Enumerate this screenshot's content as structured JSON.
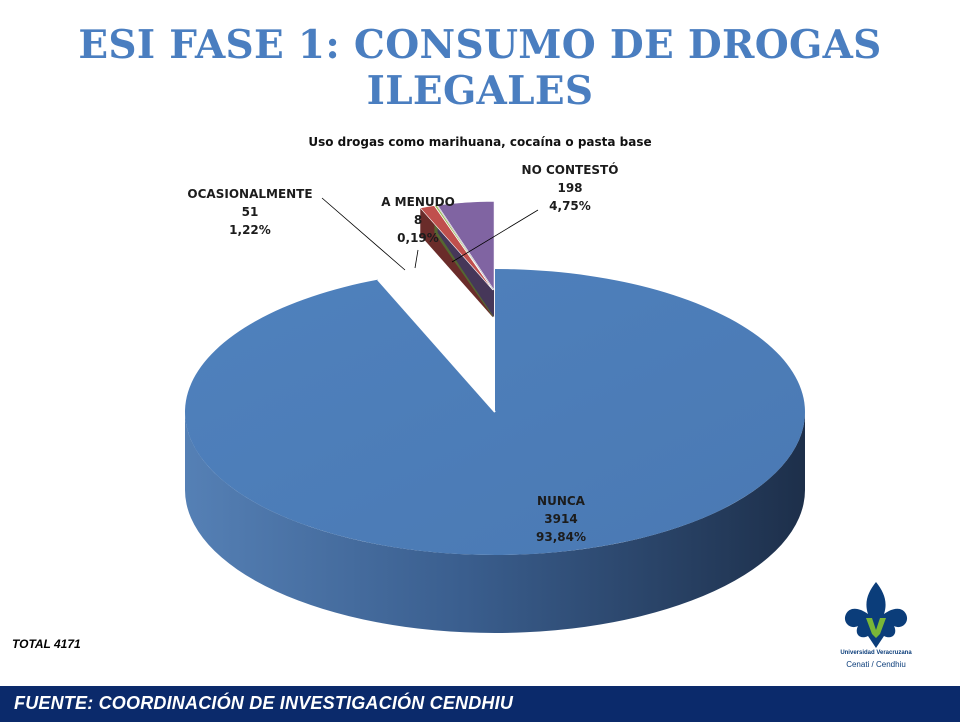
{
  "slide": {
    "title": "ESI FASE 1: CONSUMO DE DROGAS ILEGALES",
    "total_note": "TOTAL 4171",
    "footer": "FUENTE:  COORDINACIÓN DE   INVESTIGACIÓN CENDHIU"
  },
  "logo": {
    "line1": "Universidad Veracruzana",
    "line2": "Cenati / Cendhiu",
    "colors": {
      "blue": "#0b3d7a",
      "green": "#7ab637"
    }
  },
  "chart_data": {
    "type": "pie",
    "title": "Uso drogas como marihuana, cocaína o pasta base",
    "three_d": true,
    "slices": [
      {
        "label": "NUNCA",
        "value": 3914,
        "percent": "93,84%",
        "color": "#4f81bd"
      },
      {
        "label": "OCASIONALMENTE",
        "value": 51,
        "percent": "1,22%",
        "color": "#c0504d"
      },
      {
        "label": "A MENUDO",
        "value": 8,
        "percent": "0,19%",
        "color": "#9bbb59"
      },
      {
        "label": "NO CONTESTÓ",
        "value": 198,
        "percent": "4,75%",
        "color": "#8064a2"
      }
    ]
  }
}
